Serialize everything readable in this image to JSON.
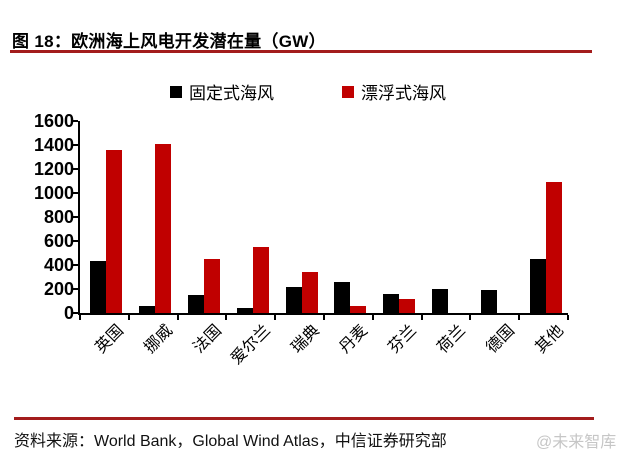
{
  "figure": {
    "title": "图 18：欧洲海上风电开发潜在量（GW）",
    "source": "资料来源：World Bank，Global Wind Atlas，中信证券研究部",
    "watermark": "@未来智库",
    "rule_color": "#A31C1C"
  },
  "legend": {
    "items": [
      {
        "label": "固定式海风",
        "color": "#000000"
      },
      {
        "label": "漂浮式海风",
        "color": "#C00000"
      }
    ]
  },
  "chart_data": {
    "type": "bar",
    "title": "欧洲海上风电开发潜在量（GW）",
    "categories": [
      "英国",
      "挪威",
      "法国",
      "爱尔兰",
      "瑞典",
      "丹麦",
      "芬兰",
      "荷兰",
      "德国",
      "其他"
    ],
    "series": [
      {
        "name": "固定式海风",
        "color": "#000000",
        "values": [
          430,
          55,
          150,
          40,
          215,
          260,
          160,
          200,
          195,
          450
        ]
      },
      {
        "name": "漂浮式海风",
        "color": "#C00000",
        "values": [
          1360,
          1410,
          450,
          550,
          345,
          60,
          120,
          0,
          0,
          1090
        ]
      }
    ],
    "xlabel": "",
    "ylabel": "",
    "ylim": [
      0,
      1600
    ],
    "yticks": [
      0,
      200,
      400,
      600,
      800,
      1000,
      1200,
      1400,
      1600
    ],
    "grid": false,
    "legend_position": "top"
  }
}
